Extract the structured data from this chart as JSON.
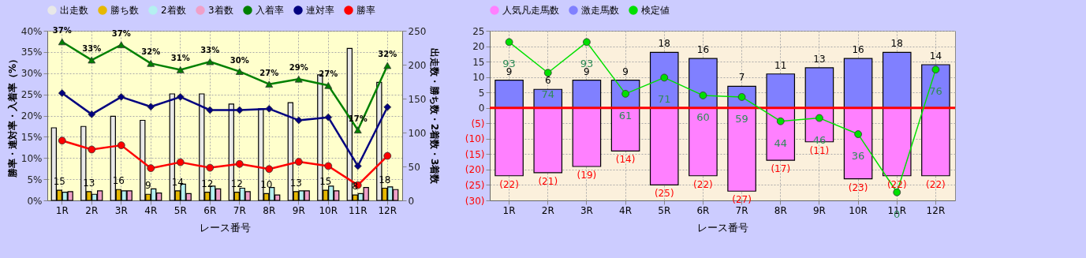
{
  "chart_data": [
    {
      "type": "bar",
      "categories": [
        "1R",
        "2R",
        "3R",
        "4R",
        "5R",
        "6R",
        "7R",
        "8R",
        "9R",
        "10R",
        "11R",
        "12R"
      ],
      "xlabel": "レース番号",
      "ylabel": "勝率・連対率・入着率（%）",
      "y2label": "出走数・勝ち数・2着数・3着数",
      "ylim": [
        0,
        40
      ],
      "yticks": [
        {
          "value": 0,
          "label": "0%"
        },
        {
          "value": 5,
          "label": "5%"
        },
        {
          "value": 10,
          "label": "10%"
        },
        {
          "value": 15,
          "label": "15%"
        },
        {
          "value": 20,
          "label": "20%"
        },
        {
          "value": 25,
          "label": "25%"
        },
        {
          "value": 30,
          "label": "30%"
        },
        {
          "value": 35,
          "label": "35%"
        },
        {
          "value": 40,
          "label": "40%"
        }
      ],
      "y2lim": [
        0,
        250
      ],
      "y2ticks": [
        0,
        50,
        100,
        150,
        200,
        250
      ],
      "grid": true,
      "legend": "top",
      "series": [
        {
          "name": "出走数",
          "color": "#e8e8e8",
          "axis": "y2",
          "values": [
            107,
            109,
            124,
            118,
            157,
            157,
            142,
            135,
            144,
            185,
            224,
            174
          ]
        },
        {
          "name": "勝ち数",
          "color": "#e6b800",
          "axis": "y2",
          "values": [
            15,
            13,
            16,
            9,
            14,
            12,
            12,
            10,
            13,
            15,
            8,
            18
          ],
          "value_labels": [
            "15",
            "13",
            "16",
            "9",
            "14",
            "12",
            "12",
            "10",
            "13",
            "15",
            "8",
            "18"
          ]
        },
        {
          "name": "2着数",
          "color": "#b4f0f0",
          "axis": "y2",
          "values": [
            12,
            9,
            14,
            17,
            24,
            21,
            18,
            19,
            14,
            21,
            10,
            20
          ]
        },
        {
          "name": "3着数",
          "color": "#f0a0c8",
          "axis": "y2",
          "values": [
            13,
            14,
            14,
            11,
            10,
            17,
            13,
            8,
            14,
            14,
            19,
            16
          ]
        },
        {
          "name": "入着率",
          "type": "line",
          "color": "#008000",
          "marker": "triangle",
          "values": [
            37.4,
            33.1,
            36.7,
            32.3,
            30.8,
            32.7,
            30.4,
            27.4,
            28.6,
            27.1,
            16.6,
            31.8
          ],
          "value_labels": [
            "37%",
            "33%",
            "37%",
            "32%",
            "31%",
            "33%",
            "30%",
            "27%",
            "29%",
            "27%",
            "17%",
            "32%"
          ]
        },
        {
          "name": "連対率",
          "type": "line",
          "color": "#000080",
          "marker": "diamond",
          "values": [
            25.3,
            20.3,
            24.4,
            22.1,
            24.4,
            21.3,
            21.3,
            21.6,
            18.9,
            19.6,
            8.1,
            22.0
          ]
        },
        {
          "name": "勝率",
          "type": "line",
          "color": "#ff0000",
          "marker": "circle",
          "values": [
            14.1,
            12.0,
            13.0,
            7.6,
            9.0,
            7.7,
            8.6,
            7.4,
            9.1,
            8.1,
            3.6,
            10.5
          ]
        }
      ]
    },
    {
      "type": "bar",
      "stacked": true,
      "categories": [
        "1R",
        "2R",
        "3R",
        "4R",
        "5R",
        "6R",
        "7R",
        "8R",
        "9R",
        "10R",
        "11R",
        "12R"
      ],
      "xlabel": "レース番号",
      "ylim": [
        -30,
        25
      ],
      "yticks": [
        25,
        20,
        15,
        10,
        5,
        0,
        {
          "value": -5,
          "label": "(5)"
        },
        {
          "value": -10,
          "label": "(10)"
        },
        {
          "value": -15,
          "label": "(15)"
        },
        {
          "value": -20,
          "label": "(20)"
        },
        {
          "value": -25,
          "label": "(25)"
        },
        {
          "value": -30,
          "label": "(30)"
        }
      ],
      "y2lim": [
        -5,
        100
      ],
      "grid": true,
      "legend": "top",
      "ref_lines": [
        {
          "axis": "y",
          "value": 0,
          "color": "#ff0000"
        }
      ],
      "series": [
        {
          "name": "人気凡走馬数",
          "color": "#ff80ff",
          "values": [
            -22,
            -21,
            -19,
            -14,
            -25,
            -22,
            -27,
            -17,
            -11,
            -23,
            -22,
            -22
          ],
          "value_labels": [
            "(22)",
            "(21)",
            "(19)",
            "(14)",
            "(25)",
            "(22)",
            "(27)",
            "(17)",
            "(11)",
            "(23)",
            "(22)",
            "(22)"
          ]
        },
        {
          "name": "激走馬数",
          "color": "#8080ff",
          "values": [
            9,
            6,
            9,
            9,
            18,
            16,
            7,
            11,
            13,
            16,
            18,
            14
          ],
          "value_labels": [
            "9",
            "6",
            "9",
            "9",
            "18",
            "16",
            "7",
            "11",
            "13",
            "16",
            "18",
            "14"
          ]
        },
        {
          "name": "検定値",
          "type": "line",
          "axis": "y2",
          "color": "#00e000",
          "marker": "circle",
          "values": [
            93,
            74,
            93,
            61,
            71,
            60,
            59,
            44,
            46,
            36,
            0,
            76
          ],
          "value_labels": [
            "93",
            "74",
            "93",
            "61",
            "71",
            "60",
            "59",
            "44",
            "46",
            "36",
            "0",
            "76"
          ]
        }
      ]
    }
  ]
}
